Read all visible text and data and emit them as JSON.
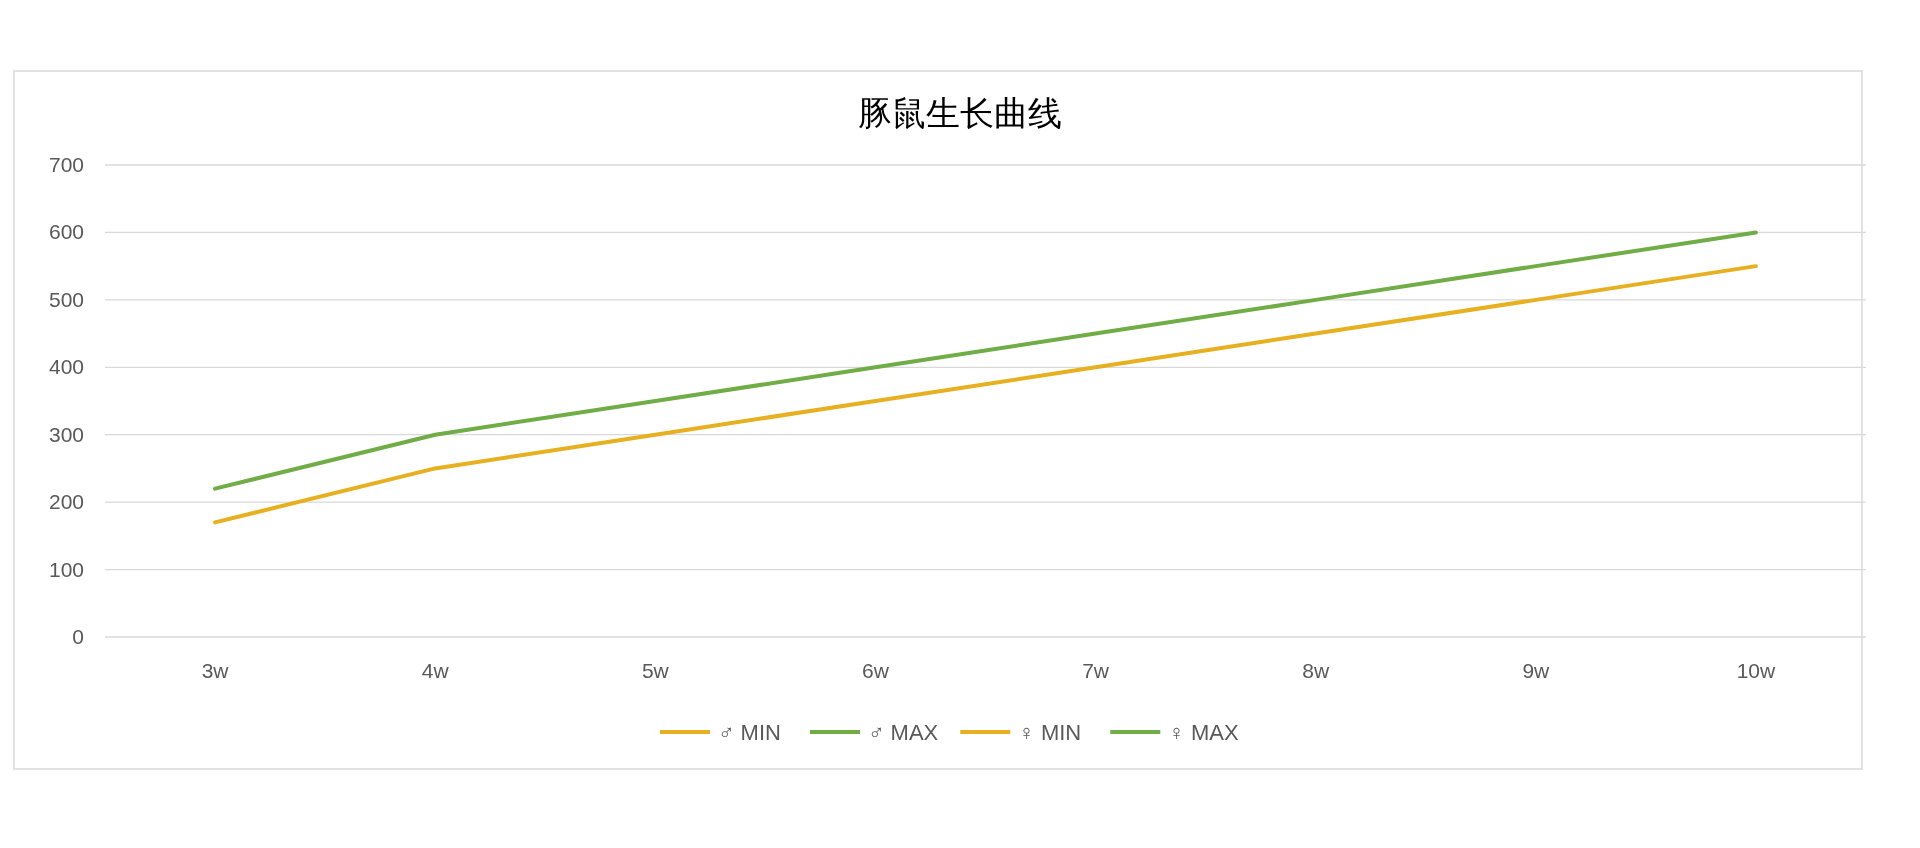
{
  "chart_data": {
    "type": "line",
    "title": "豚鼠生长曲线",
    "categories": [
      "3w",
      "4w",
      "5w",
      "6w",
      "7w",
      "8w",
      "9w",
      "10w"
    ],
    "series": [
      {
        "name": "♂ MIN",
        "color": "#e6b020",
        "values": [
          null,
          null,
          null,
          null,
          null,
          null,
          null,
          null
        ]
      },
      {
        "name": "♂ MAX",
        "color": "#70ad47",
        "values": [
          null,
          null,
          null,
          null,
          null,
          null,
          null,
          null
        ]
      },
      {
        "name": "♀ MIN",
        "color": "#e6b020",
        "values": [
          170,
          250,
          300,
          350,
          400,
          450,
          500,
          550
        ]
      },
      {
        "name": "♀ MAX",
        "color": "#70ad47",
        "values": [
          220,
          300,
          350,
          400,
          450,
          500,
          550,
          600
        ]
      }
    ],
    "ylim": [
      0,
      700
    ],
    "yticks": [
      0,
      100,
      200,
      300,
      400,
      500,
      600,
      700
    ],
    "grid": "y",
    "legend": "bottom",
    "marker": "none",
    "line_style": "solid"
  }
}
